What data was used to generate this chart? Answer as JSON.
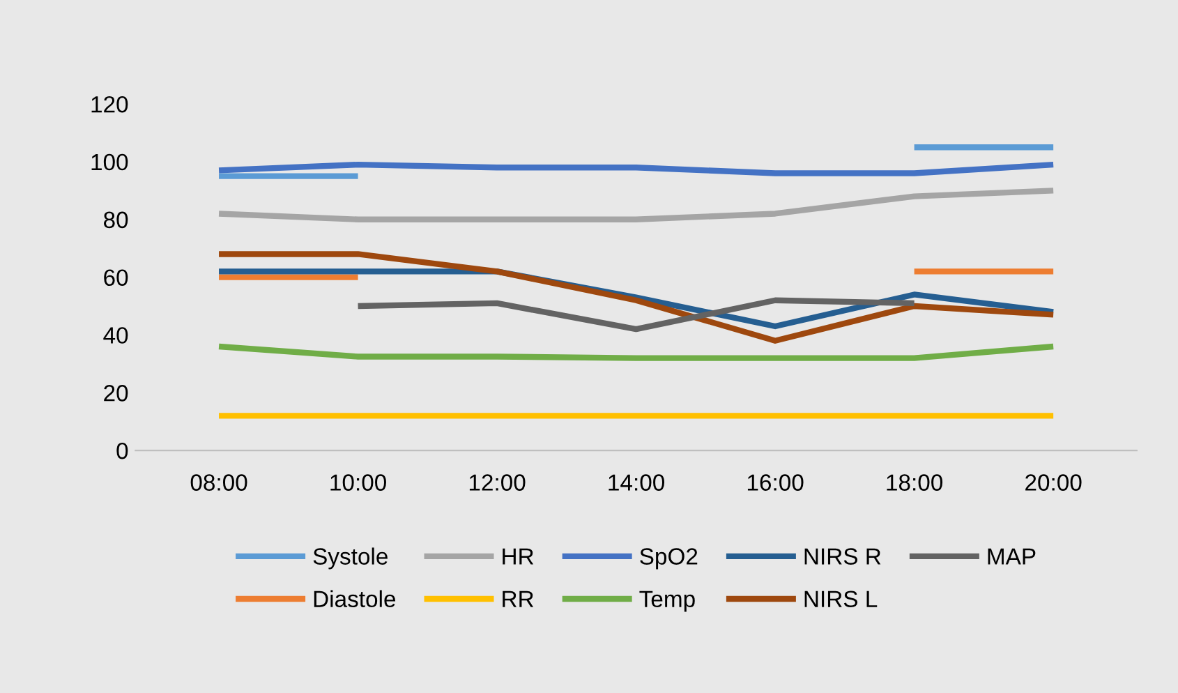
{
  "chart_data": {
    "type": "line",
    "categories": [
      "08:00",
      "10:00",
      "12:00",
      "14:00",
      "16:00",
      "18:00",
      "20:00"
    ],
    "series": [
      {
        "name": "Systole",
        "color": "#5b9bd5",
        "values": [
          95,
          95,
          null,
          null,
          null,
          105,
          105
        ]
      },
      {
        "name": "Diastole",
        "color": "#ed7d31",
        "values": [
          60,
          60,
          null,
          null,
          null,
          62,
          62
        ]
      },
      {
        "name": "HR",
        "color": "#a5a5a5",
        "values": [
          82,
          80,
          80,
          80,
          82,
          88,
          90
        ]
      },
      {
        "name": "RR",
        "color": "#ffc000",
        "values": [
          12,
          12,
          12,
          12,
          12,
          12,
          12
        ]
      },
      {
        "name": "SpO2",
        "color": "#4472c4",
        "values": [
          97,
          99,
          98,
          98,
          96,
          96,
          99
        ]
      },
      {
        "name": "Temp",
        "color": "#70ad47",
        "values": [
          36,
          32.5,
          32.5,
          32,
          32,
          32,
          36
        ]
      },
      {
        "name": "NIRS R",
        "color": "#255e91",
        "values": [
          62,
          62,
          62,
          53,
          43,
          54,
          48
        ]
      },
      {
        "name": "NIRS L",
        "color": "#9e480e",
        "values": [
          68,
          68,
          62,
          52,
          38,
          50,
          47
        ]
      },
      {
        "name": "MAP",
        "color": "#636363",
        "values": [
          null,
          50,
          51,
          42,
          52,
          51,
          null
        ]
      }
    ],
    "ylim": [
      0,
      120
    ],
    "yticks": [
      0,
      20,
      40,
      60,
      80,
      100,
      120
    ],
    "grid": false,
    "legend": "bottom",
    "marker": "none",
    "line_style": "solid"
  }
}
